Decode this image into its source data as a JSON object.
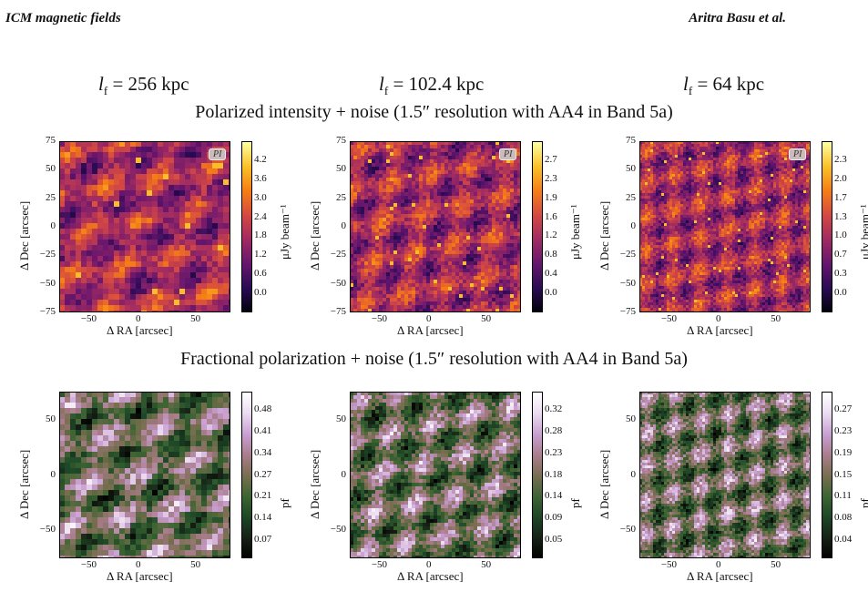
{
  "header": {
    "left": "ICM magnetic fields",
    "right": "Aritra Basu et al."
  },
  "columns": [
    {
      "label": "l",
      "sub": "f",
      "value": " = 256 kpc"
    },
    {
      "label": "l",
      "sub": "f",
      "value": " = 102.4 kpc"
    },
    {
      "label": "l",
      "sub": "f",
      "value": " = 64 kpc"
    }
  ],
  "rows": [
    {
      "title": "Polarized intensity + noise (1.5″ resolution with AA4 in Band 5a)",
      "badge": "PI",
      "cbar_label": "μJy beam⁻¹",
      "yticks": [
        "75",
        "50",
        "25",
        "0",
        "−25",
        "−50",
        "−75"
      ],
      "xticks": [
        "−50",
        "0",
        "50"
      ],
      "ylabel": "Δ Dec [arcsec]",
      "xlabel": "Δ RA [arcsec]",
      "colormap": "inferno",
      "cbar_ticks": [
        [
          "4.2",
          "3.6",
          "3.0",
          "2.4",
          "1.8",
          "1.2",
          "0.6",
          "0.0"
        ],
        [
          "2.7",
          "2.3",
          "1.9",
          "1.6",
          "1.2",
          "0.8",
          "0.4",
          "0.0"
        ],
        [
          "2.3",
          "2.0",
          "1.7",
          "1.3",
          "1.0",
          "0.7",
          "0.3",
          "0.0"
        ]
      ]
    },
    {
      "title": "Fractional polarization + noise (1.5″ resolution with AA4 in Band 5a)",
      "badge": "",
      "cbar_label": "pf",
      "yticks": [
        "50",
        "0",
        "−50"
      ],
      "xticks": [
        "−50",
        "0",
        "50"
      ],
      "ylabel": "Δ Dec [arcsec]",
      "xlabel": "Δ RA [arcsec]",
      "colormap": "cubehelix",
      "cbar_ticks": [
        [
          "0.48",
          "0.41",
          "0.34",
          "0.27",
          "0.21",
          "0.14",
          "0.07"
        ],
        [
          "0.32",
          "0.28",
          "0.23",
          "0.18",
          "0.14",
          "0.09",
          "0.05"
        ],
        [
          "0.27",
          "0.23",
          "0.19",
          "0.15",
          "0.11",
          "0.08",
          "0.04"
        ]
      ]
    }
  ]
}
